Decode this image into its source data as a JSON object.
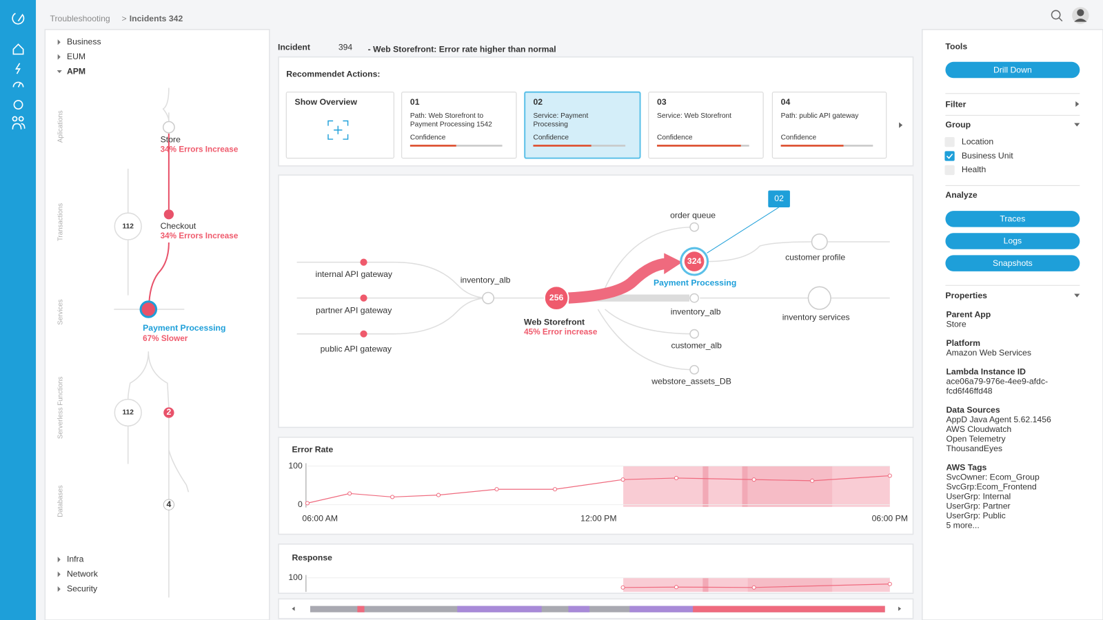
{
  "breadcrumb": {
    "parent": "Troubleshooting",
    "separator": ">",
    "current": "Incidents 342"
  },
  "tree": {
    "top": [
      "Business",
      "EUM",
      "APM"
    ],
    "bottom": [
      "Infra",
      "Network",
      "Security"
    ]
  },
  "lanes": [
    "Aplications",
    "Transactions",
    "Services",
    "Serverless Functions",
    "Databases"
  ],
  "flow": {
    "store": {
      "label": "Store",
      "status": "34% Errors Increase"
    },
    "checkout": {
      "label": "Checkout",
      "status": "34% Errors Increase"
    },
    "payment": {
      "label": "Payment Processing",
      "status": "67% Slower"
    },
    "counts": [
      112,
      112,
      2,
      4
    ]
  },
  "incident": {
    "title": "Incident",
    "number": 394,
    "subtitle": "- Web Storefront: Error rate higher than normal"
  },
  "actions": {
    "heading": "Recommendet Actions:",
    "cards": [
      {
        "title": "Show Overview"
      },
      {
        "title": "01",
        "text": [
          "Path: Web Storefront to",
          "Payment Processing 1542"
        ],
        "confidence_label": "Confidence",
        "confidence": 50
      },
      {
        "title": "02",
        "text": [
          "Service: Payment",
          "Processing"
        ],
        "confidence_label": "Confidence",
        "confidence": 63,
        "selected": true
      },
      {
        "title": "03",
        "text": [
          "Service: Web Storefront"
        ],
        "confidence_label": "Confidence",
        "confidence": 91
      },
      {
        "title": "04",
        "text": [
          "Path: public API gateway"
        ],
        "confidence_label": "Confidence",
        "confidence": 68
      }
    ]
  },
  "topology": {
    "sources": [
      "internal API gateway",
      "partner API gateway",
      "public API gateway"
    ],
    "balancer": "inventory_alb",
    "storefront": {
      "label": "Web Storefront",
      "status": "45% Error increase",
      "count": 256
    },
    "payment": {
      "label": "Payment Processing",
      "count": 324
    },
    "targets": [
      "order queue",
      "inventory_alb",
      "customer_alb",
      "webstore_assets_DB"
    ],
    "downstream": [
      "customer profile",
      "inventory services"
    ],
    "callout": "02"
  },
  "error_rate": {
    "type": "line",
    "title": "Error Rate",
    "x": [
      6,
      6.87,
      7.75,
      8.7,
      9.9,
      11.1,
      12.5,
      13.6,
      15.2,
      16.4,
      18
    ],
    "values": [
      4,
      29,
      20,
      25,
      40,
      40,
      65,
      69,
      65,
      62,
      75
    ],
    "xlim": [
      6,
      18
    ],
    "xticks": [
      {
        "value": 6,
        "label": "06:00 AM"
      },
      {
        "value": 12,
        "label": "12:00 PM"
      },
      {
        "value": 18,
        "label": "06:00 PM"
      }
    ],
    "ylim": [
      0,
      100
    ],
    "yticks": [
      0,
      100
    ],
    "color": "#ef6a7e"
  },
  "response": {
    "type": "line",
    "title": "Response",
    "x": [
      12.5,
      13.6,
      15.2,
      18
    ],
    "values": [
      75,
      76,
      75,
      84
    ],
    "xlim": [
      6,
      18
    ],
    "ylim": [
      0,
      100
    ],
    "yticks": [
      100
    ],
    "color": "#ef6a7e"
  },
  "tools": {
    "title": "Tools",
    "drill_down": "Drill Down",
    "filter": "Filter",
    "group": "Group",
    "group_options": [
      {
        "label": "Location",
        "checked": false
      },
      {
        "label": "Business Unit",
        "checked": true
      },
      {
        "label": "Health",
        "checked": false
      }
    ],
    "analyze": "Analyze",
    "analyze_buttons": [
      "Traces",
      "Logs",
      "Snapshots"
    ],
    "properties_heading": "Properties",
    "properties": [
      {
        "label": "Parent App",
        "lines": [
          "Store"
        ]
      },
      {
        "label": "Platform",
        "lines": [
          "Amazon Web Services"
        ]
      },
      {
        "label": "Lambda Instance ID",
        "lines": [
          "ace06a79-976e-4ee9-afdc-",
          "fcd6f46ffd48"
        ]
      },
      {
        "label": "Data Sources",
        "lines": [
          "AppD Java Agent 5.62.1456",
          "AWS Cloudwatch",
          "Open Telemetry",
          "ThousandEyes"
        ]
      },
      {
        "label": "AWS Tags",
        "lines": [
          "SvcOwner: Ecom_Group",
          "SvcGrp:Ecom_Frontend",
          "UserGrp: Internal",
          "UserGrp: Partner",
          "UserGrp: Public",
          "5 more..."
        ]
      }
    ]
  }
}
